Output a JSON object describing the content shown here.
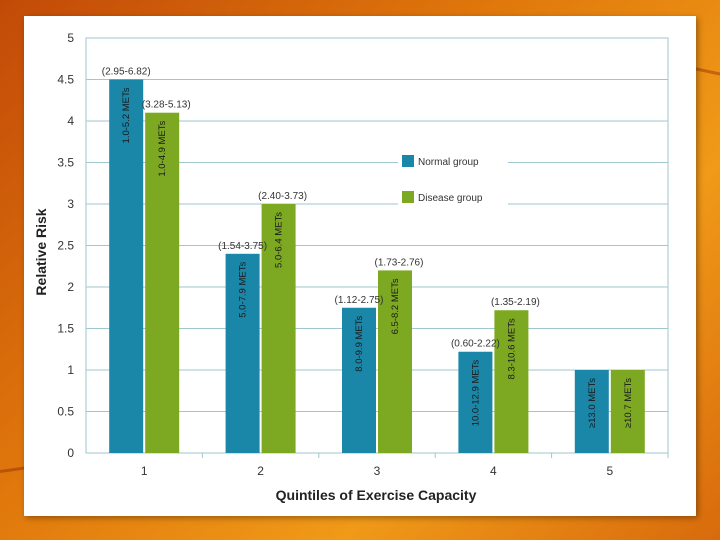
{
  "chart_data": {
    "type": "bar",
    "title": "",
    "xlabel": "Quintiles of Exercise Capacity",
    "ylabel": "Relative Risk",
    "ylim": [
      0,
      5
    ],
    "yticks": [
      "0",
      "0.5",
      "1",
      "1.5",
      "2",
      "2.5",
      "3",
      "3.5",
      "4",
      "4.5",
      "5"
    ],
    "categories": [
      "1",
      "2",
      "3",
      "4",
      "5"
    ],
    "grid": true,
    "legend_position": "right",
    "series": [
      {
        "name": "Normal group",
        "color": "#1a86a8",
        "values": [
          4.5,
          2.4,
          1.75,
          1.22,
          1.0
        ],
        "ranges": [
          "(2.95-6.82)",
          "(1.54-3.75)",
          "(1.12-2.75)",
          "(0.60-2.22)",
          ""
        ],
        "bar_labels": [
          "1.0-5.2 METs",
          "5.0-7.9 METs",
          "8.0-9.9 METs",
          "10.0-12.9 METs",
          "≥13.0 METs"
        ]
      },
      {
        "name": "Disease group",
        "color": "#7da922",
        "values": [
          4.1,
          3.0,
          2.2,
          1.72,
          1.0
        ],
        "ranges": [
          "(3.28-5.13)",
          "(2.40-3.73)",
          "(1.73-2.76)",
          "(1.35-2.19)",
          ""
        ],
        "bar_labels": [
          "1.0-4.9 METs",
          "5.0-6.4 METs",
          "6.5-8.2 METs",
          "8.3-10.6 METs",
          "≥10.7 METs"
        ]
      }
    ]
  }
}
